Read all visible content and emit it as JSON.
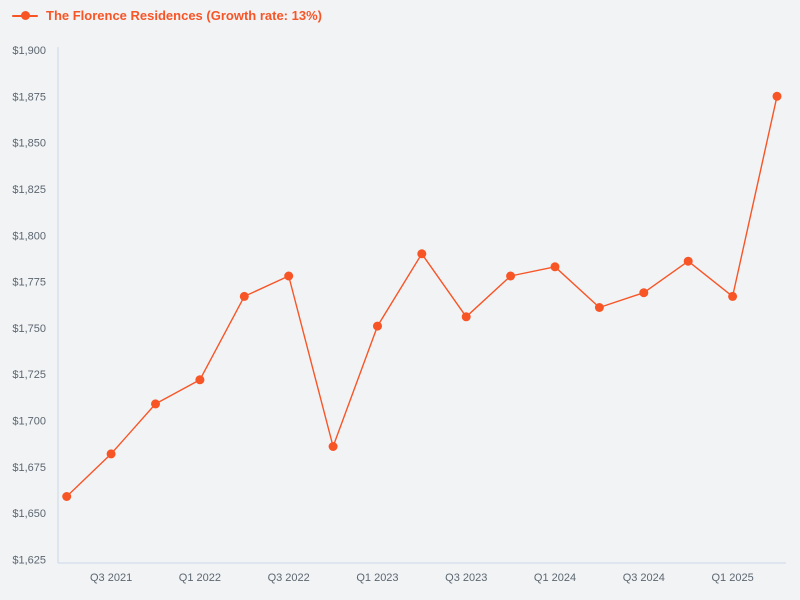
{
  "page": {
    "background": "#f1f3f5"
  },
  "legend": {
    "label": "The Florence Residences (Growth rate: 13%)"
  },
  "colors": {
    "series": "#f85527",
    "axis_line": "#ccd7e8",
    "tick_text": "#5c6670"
  },
  "chart_data": {
    "type": "line",
    "title": "The Florence Residences (Growth rate: 13%)",
    "series_name": "The Florence Residences",
    "growth_rate": "13%",
    "x": [
      "Q2 2021",
      "Q3 2021",
      "Q4 2021",
      "Q1 2022",
      "Q2 2022",
      "Q3 2022",
      "Q4 2022",
      "Q1 2023",
      "Q2 2023",
      "Q3 2023",
      "Q4 2023",
      "Q1 2024",
      "Q2 2024",
      "Q3 2024",
      "Q4 2024",
      "Q1 2025",
      "Q2 2025"
    ],
    "values": [
      1659,
      1682,
      1709,
      1722,
      1767,
      1778,
      1686,
      1751,
      1790,
      1756,
      1778,
      1783,
      1761,
      1769,
      1786,
      1767,
      1875
    ],
    "x_tick_indices": [
      1,
      3,
      5,
      7,
      9,
      11,
      13,
      15
    ],
    "y_ticks": [
      1625,
      1650,
      1675,
      1700,
      1725,
      1750,
      1775,
      1800,
      1825,
      1850,
      1875,
      1900
    ],
    "y_tick_labels": [
      "$1,625",
      "$1,650",
      "$1,675",
      "$1,700",
      "$1,725",
      "$1,750",
      "$1,775",
      "$1,800",
      "$1,825",
      "$1,850",
      "$1,875",
      "$1,900"
    ],
    "ylim": [
      1625,
      1900
    ],
    "grid": false,
    "legend_position": "top-left",
    "marker": "circle"
  }
}
